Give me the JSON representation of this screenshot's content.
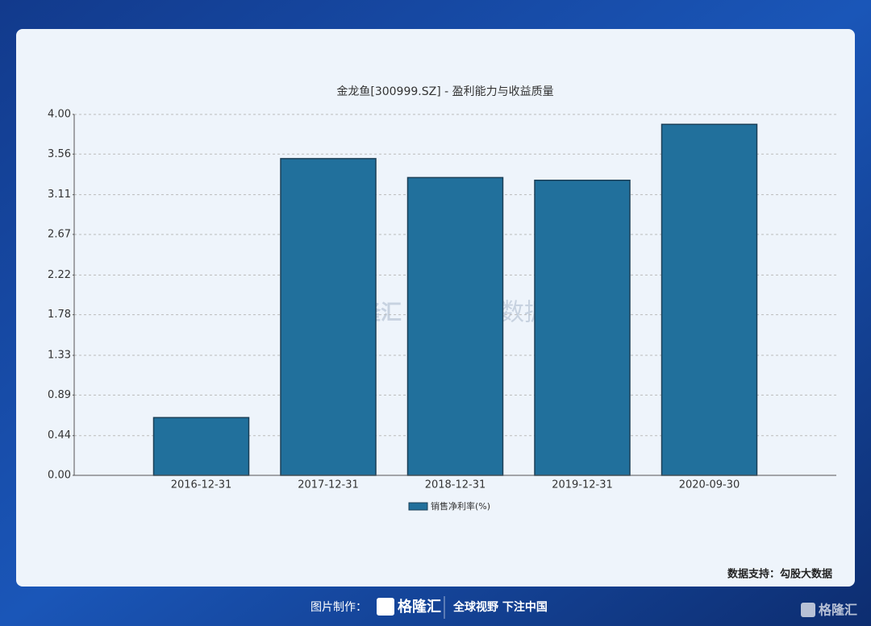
{
  "chart_data": {
    "type": "bar",
    "title": "金龙鱼[300999.SZ] - 盈利能力与收益质量",
    "categories": [
      "2016-12-31",
      "2017-12-31",
      "2018-12-31",
      "2019-12-31",
      "2020-09-30"
    ],
    "series": [
      {
        "name": "销售净利率(%)",
        "color": "#21709c",
        "values": [
          0.64,
          3.51,
          3.3,
          3.27,
          3.89
        ]
      }
    ],
    "ylim": [
      0,
      4
    ],
    "yticks": [
      {
        "value": 0,
        "label": "0.00"
      },
      0.44,
      0.89,
      1.33,
      1.78,
      2.22,
      2.67,
      3.11,
      3.56,
      {
        "value": 4,
        "label": "4.00"
      }
    ],
    "grid": true,
    "legend": "bottom"
  },
  "source": "数据支持：勾股大数据",
  "watermark": {
    "brand": "格隆汇",
    "text": "勾股大数据"
  },
  "footer": {
    "label": "图片制作：",
    "brand": "格隆汇",
    "slogan": "全球视野 下注中国",
    "corner_brand": "格隆汇"
  }
}
